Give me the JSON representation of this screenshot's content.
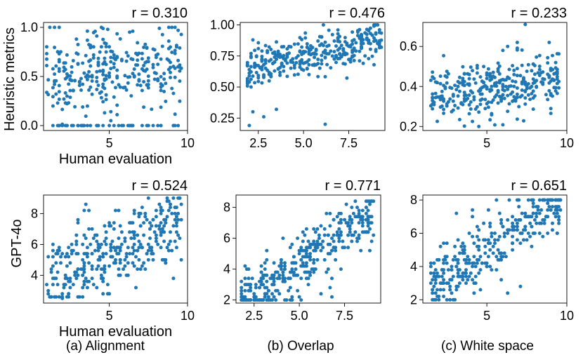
{
  "figure": {
    "row_labels": [
      "Heuristic metrics",
      "GPT-4o"
    ],
    "captions": [
      "(a) Alignment",
      "(b) Overlap",
      "(c) White space"
    ],
    "xlabel": "Human evaluation",
    "point_color": "#1f77b4"
  },
  "chart_data": [
    {
      "type": "scatter",
      "panel": "(a) Alignment",
      "metric": "Heuristic metrics",
      "annotation": "r = 0.310",
      "xlabel": "Human evaluation",
      "ylabel": "Heuristic metrics",
      "xlim": [
        0.8,
        10
      ],
      "ylim": [
        -0.05,
        1.05
      ],
      "xticks": [
        5,
        10
      ],
      "xtick_labels": [
        "5",
        "10"
      ],
      "yticks": [
        0.0,
        0.5,
        1.0
      ],
      "ytick_labels": [
        "0.0",
        "0.5",
        "1.0"
      ],
      "gen": {
        "seed": 11,
        "n": 330,
        "xmin": 1.0,
        "xmax": 9.6,
        "ymin": 0.0,
        "ymax": 1.0,
        "slope": 0.025,
        "intercept": 0.42,
        "noise": 0.2,
        "zero_frac": 0.07
      },
      "points": [
        [
          2.0,
          0.0
        ],
        [
          2.3,
          0.0
        ],
        [
          2.6,
          0.0
        ],
        [
          3.0,
          0.0
        ],
        [
          3.3,
          0.0
        ],
        [
          3.8,
          0.0
        ],
        [
          4.2,
          0.0
        ],
        [
          4.6,
          0.0
        ],
        [
          5.0,
          0.0
        ],
        [
          5.3,
          0.0
        ],
        [
          5.6,
          0.0
        ],
        [
          5.9,
          0.0
        ],
        [
          6.2,
          0.0
        ],
        [
          6.5,
          0.0
        ],
        [
          7.8,
          0.0
        ],
        [
          8.3,
          0.0
        ],
        [
          9.2,
          0.0
        ],
        [
          2.9,
          0.88
        ],
        [
          8.2,
          0.99
        ],
        [
          9.0,
          1.0
        ],
        [
          9.4,
          0.97
        ]
      ]
    },
    {
      "type": "scatter",
      "panel": "(b) Overlap",
      "metric": "Heuristic metrics",
      "annotation": "r = 0.476",
      "xlabel": "",
      "ylabel": "",
      "xlim": [
        1.5,
        9.5
      ],
      "ylim": [
        0.15,
        1.02
      ],
      "xticks": [
        2.5,
        5.0,
        7.5
      ],
      "xtick_labels": [
        "2.5",
        "5.0",
        "7.5"
      ],
      "yticks": [
        0.25,
        0.5,
        0.75,
        1.0
      ],
      "ytick_labels": [
        "0.25",
        "0.50",
        "0.75",
        "1.00"
      ],
      "gen": {
        "seed": 23,
        "n": 340,
        "xmin": 1.8,
        "xmax": 9.3,
        "ymin": 0.18,
        "ymax": 1.0,
        "slope": 0.028,
        "intercept": 0.6,
        "noise": 0.08,
        "zero_frac": 0
      },
      "points": [
        [
          2.0,
          0.19
        ],
        [
          2.2,
          0.3
        ],
        [
          2.8,
          0.26
        ],
        [
          3.5,
          0.32
        ],
        [
          2.1,
          0.5
        ],
        [
          6.2,
          0.2
        ]
      ]
    },
    {
      "type": "scatter",
      "panel": "(c) White space",
      "metric": "Heuristic metrics",
      "annotation": "r = 0.233",
      "xlabel": "",
      "ylabel": "",
      "xlim": [
        1.0,
        10.0
      ],
      "ylim": [
        0.18,
        0.72
      ],
      "xticks": [
        5,
        10
      ],
      "xtick_labels": [
        "5",
        "10"
      ],
      "yticks": [
        0.2,
        0.4,
        0.6
      ],
      "ytick_labels": [
        "0.2",
        "0.4",
        "0.6"
      ],
      "gen": {
        "seed": 37,
        "n": 330,
        "xmin": 1.5,
        "xmax": 9.5,
        "ymin": 0.2,
        "ymax": 0.62,
        "slope": 0.012,
        "intercept": 0.33,
        "noise": 0.07,
        "zero_frac": 0
      },
      "points": [
        [
          7.4,
          0.71
        ],
        [
          6.3,
          0.6
        ],
        [
          6.0,
          0.58
        ]
      ]
    },
    {
      "type": "scatter",
      "panel": "(a) Alignment",
      "metric": "GPT-4o",
      "annotation": "r = 0.524",
      "xlabel": "Human evaluation",
      "ylabel": "GPT-4o",
      "xlim": [
        0.8,
        10
      ],
      "ylim": [
        2.2,
        9.2
      ],
      "xticks": [
        5,
        10
      ],
      "xtick_labels": [
        "5",
        "10"
      ],
      "yticks": [
        4,
        6,
        8
      ],
      "ytick_labels": [
        "4",
        "6",
        "8"
      ],
      "gen": {
        "seed": 41,
        "n": 340,
        "xmin": 1.0,
        "xmax": 9.6,
        "ymin": 2.5,
        "ymax": 9.0,
        "slope": 0.42,
        "intercept": 3.3,
        "noise": 1.3,
        "zero_frac": 0,
        "yquant": 0.2
      },
      "points": [
        [
          9.1,
          9.0
        ],
        [
          3.5,
          8.6
        ],
        [
          2.0,
          2.5
        ]
      ]
    },
    {
      "type": "scatter",
      "panel": "(b) Overlap",
      "metric": "GPT-4o",
      "annotation": "r = 0.771",
      "xlabel": "",
      "ylabel": "",
      "xlim": [
        1.5,
        9.5
      ],
      "ylim": [
        1.8,
        8.8
      ],
      "xticks": [
        2.5,
        5.0,
        7.5
      ],
      "xtick_labels": [
        "2.5",
        "5.0",
        "7.5"
      ],
      "yticks": [
        2,
        4,
        6,
        8
      ],
      "ytick_labels": [
        "2",
        "4",
        "6",
        "8"
      ],
      "gen": {
        "seed": 53,
        "n": 350,
        "xmin": 1.8,
        "xmax": 9.2,
        "ymin": 2.0,
        "ymax": 8.4,
        "slope": 0.75,
        "intercept": 0.6,
        "noise": 0.95,
        "zero_frac": 0,
        "yquant": 0.2
      },
      "points": [
        [
          1.9,
          2.0
        ],
        [
          6.8,
          2.2
        ],
        [
          6.2,
          2.4
        ]
      ]
    },
    {
      "type": "scatter",
      "panel": "(c) White space",
      "metric": "GPT-4o",
      "annotation": "r = 0.651",
      "xlabel": "",
      "ylabel": "",
      "xlim": [
        1.0,
        10.0
      ],
      "ylim": [
        1.8,
        8.3
      ],
      "xticks": [
        5,
        10
      ],
      "xtick_labels": [
        "5",
        "10"
      ],
      "yticks": [
        2,
        4,
        6,
        8
      ],
      "ytick_labels": [
        "2",
        "4",
        "6",
        "8"
      ],
      "gen": {
        "seed": 67,
        "n": 330,
        "xmin": 1.5,
        "xmax": 9.6,
        "ymin": 2.0,
        "ymax": 8.0,
        "slope": 0.62,
        "intercept": 2.0,
        "noise": 1.0,
        "zero_frac": 0,
        "yquant": 0.2
      },
      "points": [
        [
          1.6,
          2.0
        ],
        [
          2.0,
          2.0
        ],
        [
          7.1,
          2.8
        ],
        [
          8.6,
          8.0
        ]
      ]
    }
  ]
}
